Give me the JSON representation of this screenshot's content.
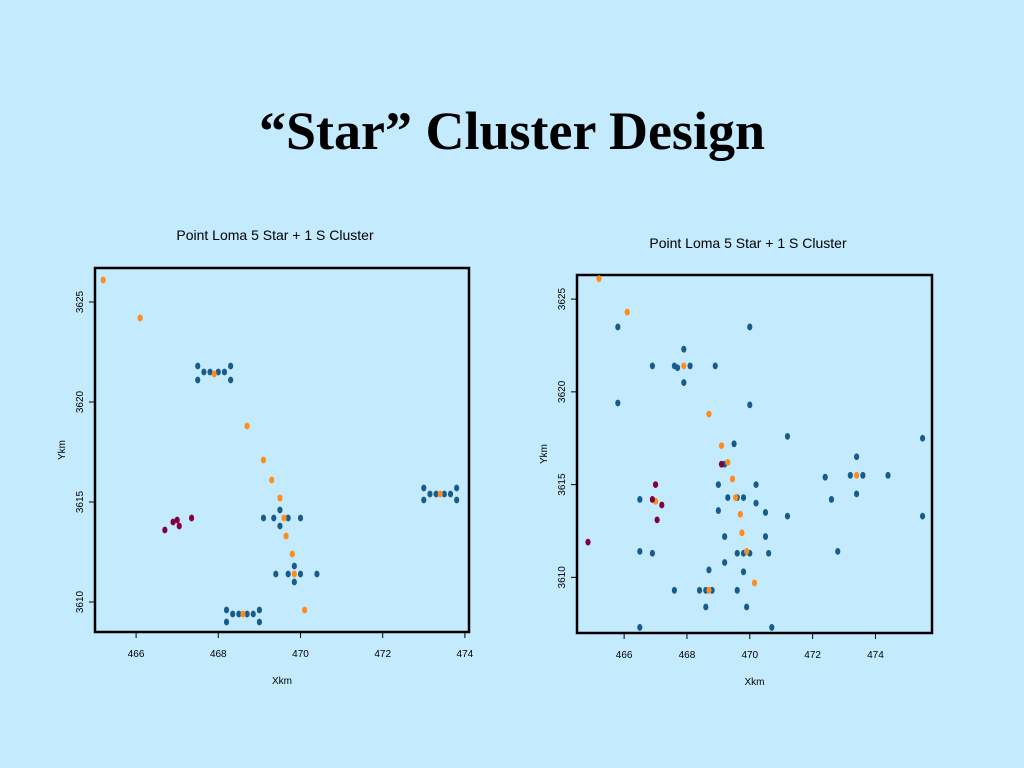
{
  "slide": {
    "title": "“Star” Cluster Design"
  },
  "colors": {
    "background": "#c4eafd",
    "blue": "#175c8c",
    "orange": "#ff8c1a",
    "purple": "#800040"
  },
  "chart_data": [
    {
      "type": "scatter",
      "title": "Point Loma 5 Star + 1 S Cluster",
      "xlabel": "Xkm",
      "ylabel": "Ykm",
      "xlim": [
        465,
        474.1
      ],
      "ylim": [
        3608.5,
        3626.7
      ],
      "xticks": [
        "466",
        "468",
        "470",
        "472",
        "474"
      ],
      "yticks": [
        "3610",
        "3615",
        "3620",
        "3625"
      ],
      "series": [
        {
          "color": "blue",
          "points": [
            [
              467.5,
              3621.8
            ],
            [
              467.5,
              3621.1
            ],
            [
              467.65,
              3621.5
            ],
            [
              467.8,
              3621.5
            ],
            [
              468.0,
              3621.5
            ],
            [
              468.15,
              3621.5
            ],
            [
              468.3,
              3621.8
            ],
            [
              468.3,
              3621.1
            ],
            [
              473.0,
              3615.7
            ],
            [
              473.0,
              3615.1
            ],
            [
              473.15,
              3615.4
            ],
            [
              473.3,
              3615.4
            ],
            [
              473.5,
              3615.4
            ],
            [
              473.65,
              3615.4
            ],
            [
              473.8,
              3615.7
            ],
            [
              473.8,
              3615.1
            ],
            [
              469.1,
              3614.2
            ],
            [
              469.35,
              3614.2
            ],
            [
              469.5,
              3614.6
            ],
            [
              469.5,
              3613.8
            ],
            [
              469.7,
              3614.2
            ],
            [
              470.0,
              3614.2
            ],
            [
              469.4,
              3611.4
            ],
            [
              469.7,
              3611.4
            ],
            [
              469.85,
              3611.8
            ],
            [
              469.85,
              3611.0
            ],
            [
              470.0,
              3611.4
            ],
            [
              470.4,
              3611.4
            ],
            [
              468.2,
              3609.6
            ],
            [
              468.2,
              3609.0
            ],
            [
              468.35,
              3609.4
            ],
            [
              468.5,
              3609.4
            ],
            [
              468.7,
              3609.4
            ],
            [
              468.85,
              3609.4
            ],
            [
              469.0,
              3609.6
            ],
            [
              469.0,
              3609.0
            ]
          ]
        },
        {
          "color": "orange",
          "points": [
            [
              465.2,
              3626.1
            ],
            [
              466.1,
              3624.2
            ],
            [
              467.9,
              3621.4
            ],
            [
              468.7,
              3618.8
            ],
            [
              469.1,
              3617.1
            ],
            [
              469.3,
              3616.1
            ],
            [
              469.5,
              3615.2
            ],
            [
              469.6,
              3614.2
            ],
            [
              469.65,
              3613.3
            ],
            [
              469.8,
              3612.4
            ],
            [
              469.85,
              3611.4
            ],
            [
              470.1,
              3609.6
            ],
            [
              468.6,
              3609.4
            ],
            [
              473.4,
              3615.4
            ]
          ]
        },
        {
          "color": "purple",
          "points": [
            [
              466.7,
              3613.6
            ],
            [
              466.9,
              3614.0
            ],
            [
              467.0,
              3614.1
            ],
            [
              467.05,
              3613.8
            ],
            [
              467.35,
              3614.2
            ]
          ]
        }
      ]
    },
    {
      "type": "scatter",
      "title": "Point Loma 5 Star + 1 S Cluster",
      "xlabel": "Xkm",
      "ylabel": "Ykm",
      "xlim": [
        464.5,
        475.8
      ],
      "ylim": [
        3607.0,
        3626.3
      ],
      "xticks": [
        "466",
        "468",
        "470",
        "472",
        "474"
      ],
      "yticks": [
        "3610",
        "3615",
        "3620",
        "3625"
      ],
      "series": [
        {
          "color": "blue",
          "points": [
            [
              465.8,
              3623.5
            ],
            [
              466.9,
              3621.4
            ],
            [
              467.7,
              3621.3
            ],
            [
              467.9,
              3622.3
            ],
            [
              467.9,
              3620.5
            ],
            [
              467.6,
              3621.4
            ],
            [
              468.1,
              3621.4
            ],
            [
              468.9,
              3621.4
            ],
            [
              470.0,
              3623.5
            ],
            [
              470.0,
              3619.3
            ],
            [
              465.8,
              3619.4
            ],
            [
              473.2,
              3615.5
            ],
            [
              473.4,
              3616.5
            ],
            [
              473.4,
              3614.5
            ],
            [
              473.6,
              3615.5
            ],
            [
              472.4,
              3615.4
            ],
            [
              474.4,
              3615.5
            ],
            [
              475.5,
              3617.5
            ],
            [
              475.5,
              3613.3
            ],
            [
              472.6,
              3614.2
            ],
            [
              469.5,
              3617.2
            ],
            [
              469.2,
              3616.1
            ],
            [
              469.3,
              3614.3
            ],
            [
              469.6,
              3614.3
            ],
            [
              469.8,
              3614.3
            ],
            [
              470.2,
              3615.0
            ],
            [
              470.2,
              3614.0
            ],
            [
              469.0,
              3615.0
            ],
            [
              469.0,
              3613.6
            ],
            [
              471.2,
              3617.6
            ],
            [
              471.2,
              3613.3
            ],
            [
              470.5,
              3613.5
            ],
            [
              469.6,
              3611.3
            ],
            [
              469.8,
              3611.3
            ],
            [
              470.0,
              3611.3
            ],
            [
              470.6,
              3611.3
            ],
            [
              470.5,
              3612.2
            ],
            [
              469.2,
              3612.2
            ],
            [
              469.2,
              3610.8
            ],
            [
              469.8,
              3610.3
            ],
            [
              472.8,
              3611.4
            ],
            [
              468.6,
              3609.3
            ],
            [
              468.4,
              3609.3
            ],
            [
              468.8,
              3609.3
            ],
            [
              468.7,
              3610.4
            ],
            [
              468.6,
              3608.4
            ],
            [
              469.6,
              3609.3
            ],
            [
              467.6,
              3609.3
            ],
            [
              469.9,
              3608.4
            ],
            [
              470.7,
              3607.3
            ],
            [
              466.5,
              3607.3
            ],
            [
              466.5,
              3614.2
            ],
            [
              466.5,
              3611.4
            ],
            [
              466.9,
              3611.3
            ]
          ]
        },
        {
          "color": "orange",
          "points": [
            [
              465.2,
              3626.1
            ],
            [
              466.1,
              3624.3
            ],
            [
              468.7,
              3618.8
            ],
            [
              469.1,
              3617.1
            ],
            [
              469.3,
              3616.2
            ],
            [
              469.45,
              3615.3
            ],
            [
              469.55,
              3614.3
            ],
            [
              469.7,
              3613.4
            ],
            [
              469.75,
              3612.4
            ],
            [
              469.9,
              3611.4
            ],
            [
              470.15,
              3609.7
            ],
            [
              468.7,
              3609.3
            ],
            [
              467.9,
              3621.4
            ],
            [
              473.4,
              3615.5
            ],
            [
              467.0,
              3614.1
            ]
          ]
        },
        {
          "color": "purple",
          "points": [
            [
              464.85,
              3611.9
            ],
            [
              466.9,
              3614.2
            ],
            [
              467.0,
              3615.0
            ],
            [
              467.05,
              3613.1
            ],
            [
              467.2,
              3613.9
            ],
            [
              469.1,
              3616.1
            ]
          ]
        }
      ]
    }
  ]
}
